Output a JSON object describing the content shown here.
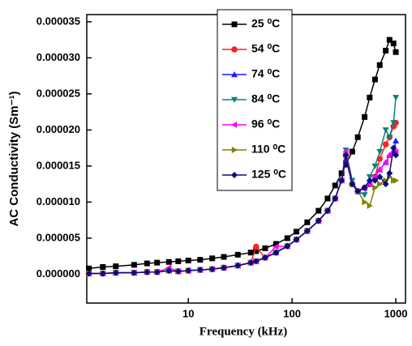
{
  "chart_data": {
    "type": "line",
    "xlabel": "Frequency (kHz)",
    "ylabel": "AC Conductivity (Sm⁻¹)",
    "x": [
      1.1,
      1.5,
      2,
      3,
      4,
      5,
      6.5,
      8,
      10,
      13,
      17,
      22,
      30,
      40,
      45,
      55,
      70,
      90,
      110,
      140,
      180,
      220,
      260,
      300,
      330,
      380,
      430,
      500,
      560,
      630,
      700,
      800,
      870,
      950,
      1000
    ],
    "xscale": "log",
    "xlim": [
      1.05,
      1240
    ],
    "xticks": [
      10,
      100,
      1000
    ],
    "ylim": [
      -4e-06,
      3.6e-05
    ],
    "yticks": [
      {
        "value": 0,
        "label": "0.000000"
      },
      {
        "value": 5e-06,
        "label": "0.000005"
      },
      {
        "value": 1e-05,
        "label": "0.000010"
      },
      {
        "value": 1.5e-05,
        "label": "0.000015"
      },
      {
        "value": 2e-05,
        "label": "0.000020"
      },
      {
        "value": 2.5e-05,
        "label": "0.000025"
      },
      {
        "value": 3e-05,
        "label": "0.000030"
      },
      {
        "value": 3.5e-05,
        "label": "0.000035"
      }
    ],
    "legend": "upper center",
    "series": [
      {
        "name": "25 ⁰C",
        "color": "#000000",
        "marker": "square",
        "values": [
          8e-07,
          1e-06,
          1.1e-06,
          1.3e-06,
          1.5e-06,
          1.6e-06,
          1.7e-06,
          1.8e-06,
          1.9e-06,
          2e-06,
          2.2e-06,
          2.4e-06,
          2.7e-06,
          3e-06,
          3.2e-06,
          3.6e-06,
          4.2e-06,
          5e-06,
          5.9e-06,
          7.2e-06,
          8.8e-06,
          1.05e-05,
          1.23e-05,
          1.4e-05,
          1.52e-05,
          1.7e-05,
          1.9e-05,
          2.18e-05,
          2.45e-05,
          2.7e-05,
          2.9e-05,
          3.1e-05,
          3.25e-05,
          3.2e-05,
          3.08e-05
        ]
      },
      {
        "name": "54 ⁰C",
        "color": "#ff2020",
        "marker": "circle",
        "values": [
          1e-07,
          1e-07,
          2e-07,
          2e-07,
          3e-07,
          3e-07,
          5e-07,
          4e-07,
          5e-07,
          6e-07,
          7e-07,
          9e-07,
          1.2e-06,
          1.6e-06,
          3.8e-06,
          2.3e-06,
          3e-06,
          3.9e-06,
          4.8e-06,
          6e-06,
          7.4e-06,
          8.8e-06,
          1.05e-05,
          1.3e-05,
          1.65e-05,
          1.25e-05,
          1.15e-05,
          1.2e-05,
          1.25e-05,
          1.35e-05,
          1.6e-05,
          1.8e-05,
          1.9e-05,
          2.05e-05,
          2.1e-05
        ]
      },
      {
        "name": "74 ⁰C",
        "color": "#1a1aff",
        "marker": "triangle-up",
        "values": [
          1e-07,
          1e-07,
          2e-07,
          2e-07,
          3e-07,
          3e-07,
          5e-07,
          4e-07,
          5e-07,
          6e-07,
          7e-07,
          9e-07,
          1.2e-06,
          1.6e-06,
          1.8e-06,
          2.3e-06,
          3e-06,
          3.9e-06,
          4.8e-06,
          6e-06,
          7.4e-06,
          8.8e-06,
          1.05e-05,
          1.3e-05,
          1.6e-05,
          1.25e-05,
          1.15e-05,
          1.2e-05,
          1.25e-05,
          1.35e-05,
          1.45e-05,
          1.55e-05,
          1.65e-05,
          1.7e-05,
          1.85e-05
        ]
      },
      {
        "name": "84 ⁰C",
        "color": "#0e8080",
        "marker": "triangle-down",
        "values": [
          1e-07,
          1e-07,
          2e-07,
          2e-07,
          3e-07,
          3e-07,
          5e-07,
          4e-07,
          5e-07,
          6e-07,
          7e-07,
          9e-07,
          1.2e-06,
          1.6e-06,
          1.8e-06,
          2.3e-06,
          3e-06,
          3.9e-06,
          4.8e-06,
          6e-06,
          7.4e-06,
          8.8e-06,
          1.05e-05,
          1.3e-05,
          1.72e-05,
          1.3e-05,
          1.15e-05,
          1.1e-05,
          1.35e-05,
          1.5e-05,
          1.7e-05,
          2e-05,
          1.9e-05,
          2.1e-05,
          2.45e-05
        ]
      },
      {
        "name": "96 ⁰C",
        "color": "#ff00ff",
        "marker": "triangle-left",
        "values": [
          1e-07,
          1e-07,
          2e-07,
          2e-07,
          3e-07,
          3e-07,
          9e-07,
          4e-07,
          5e-07,
          6e-07,
          7e-07,
          9e-07,
          1.2e-06,
          1.6e-06,
          1.8e-06,
          2.3e-06,
          3.8e-06,
          3.9e-06,
          4.8e-06,
          6e-06,
          7.4e-06,
          8.8e-06,
          1.05e-05,
          1.3e-05,
          1.7e-05,
          1.25e-05,
          1.15e-05,
          1.2e-05,
          1.25e-05,
          1.35e-05,
          1.45e-05,
          1.55e-05,
          1.65e-05,
          1.75e-05,
          1.7e-05
        ]
      },
      {
        "name": "110 ⁰C",
        "color": "#808000",
        "marker": "triangle-right",
        "values": [
          1e-07,
          1e-07,
          2e-07,
          2e-07,
          3e-07,
          3e-07,
          5e-07,
          4e-07,
          5e-07,
          6e-07,
          7e-07,
          9e-07,
          1.2e-06,
          1.6e-06,
          1.8e-06,
          2.3e-06,
          3e-06,
          3.9e-06,
          4.8e-06,
          6e-06,
          7.4e-06,
          8.8e-06,
          1.05e-05,
          1.3e-05,
          1.65e-05,
          1.25e-05,
          1.15e-05,
          1e-05,
          9.5e-06,
          1.2e-05,
          1.25e-05,
          1.3e-05,
          1.35e-05,
          1.3e-05,
          1.3e-05
        ]
      },
      {
        "name": "125 ⁰C",
        "color": "#0b0b80",
        "marker": "diamond",
        "values": [
          1e-07,
          1e-07,
          2e-07,
          2e-07,
          3e-07,
          3e-07,
          5e-07,
          4e-07,
          5e-07,
          6e-07,
          7e-07,
          9e-07,
          1.2e-06,
          1.6e-06,
          1.8e-06,
          2.3e-06,
          3e-06,
          3.9e-06,
          4.8e-06,
          6e-06,
          7.4e-06,
          8.8e-06,
          1.05e-05,
          1.3e-05,
          1.65e-05,
          1.25e-05,
          1.15e-05,
          1.2e-05,
          1.3e-05,
          1.3e-05,
          1.35e-05,
          1.25e-05,
          1.4e-05,
          1.75e-05,
          1.65e-05
        ]
      }
    ]
  }
}
